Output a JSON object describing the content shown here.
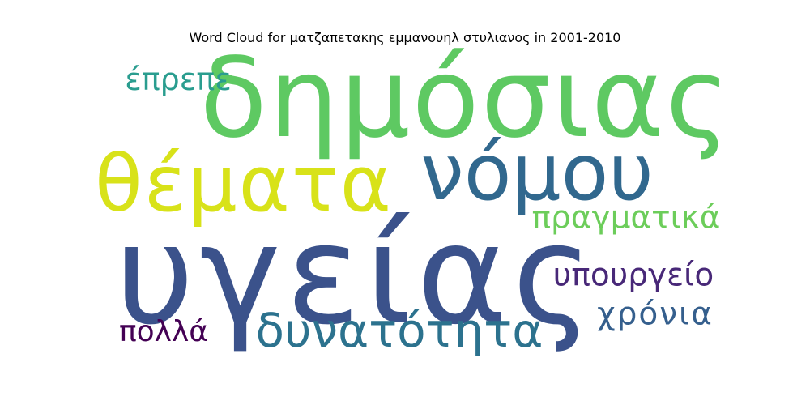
{
  "title": "Word Cloud for ματζαπετακης εμμανουηλ στυλιανος in 2001-2010",
  "words": [
    {
      "text": "δημόσιας",
      "color": "#5ec962"
    },
    {
      "text": "νόμου",
      "color": "#31688e"
    },
    {
      "text": "θέματα",
      "color": "#d8e219"
    },
    {
      "text": "υγείας",
      "color": "#3b528b"
    },
    {
      "text": "έπρεπε",
      "color": "#2a9d8f"
    },
    {
      "text": "πραγματικά",
      "color": "#6ccd5a"
    },
    {
      "text": "υπουργείο",
      "color": "#482878"
    },
    {
      "text": "χρόνια",
      "color": "#355f8d"
    },
    {
      "text": "δυνατότητα",
      "color": "#2c728e"
    },
    {
      "text": "πολλά",
      "color": "#440154"
    }
  ]
}
